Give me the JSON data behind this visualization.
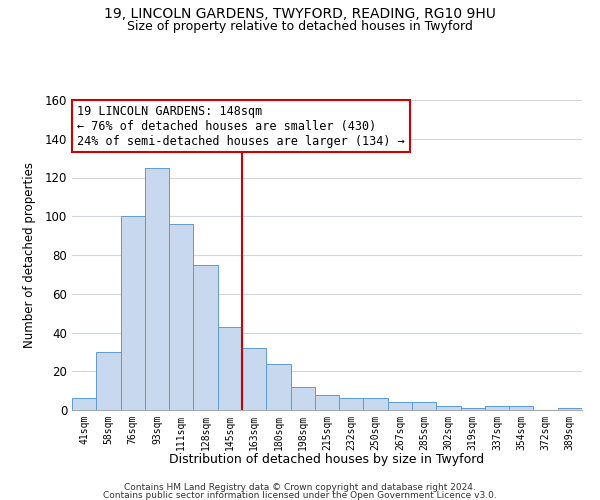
{
  "title1": "19, LINCOLN GARDENS, TWYFORD, READING, RG10 9HU",
  "title2": "Size of property relative to detached houses in Twyford",
  "xlabel": "Distribution of detached houses by size in Twyford",
  "ylabel": "Number of detached properties",
  "bar_labels": [
    "41sqm",
    "58sqm",
    "76sqm",
    "93sqm",
    "111sqm",
    "128sqm",
    "145sqm",
    "163sqm",
    "180sqm",
    "198sqm",
    "215sqm",
    "232sqm",
    "250sqm",
    "267sqm",
    "285sqm",
    "302sqm",
    "319sqm",
    "337sqm",
    "354sqm",
    "372sqm",
    "389sqm"
  ],
  "bar_values": [
    6,
    30,
    100,
    125,
    96,
    75,
    43,
    32,
    24,
    12,
    8,
    6,
    6,
    4,
    4,
    2,
    1,
    2,
    2,
    0,
    1
  ],
  "bar_color": "#c8d9ef",
  "bar_edge_color": "#5b9bd5",
  "vline_x_index": 6,
  "vline_color": "#cc0000",
  "annotation_text": "19 LINCOLN GARDENS: 148sqm\n← 76% of detached houses are smaller (430)\n24% of semi-detached houses are larger (134) →",
  "annotation_box_edge": "#cc0000",
  "ylim": [
    0,
    160
  ],
  "yticks": [
    0,
    20,
    40,
    60,
    80,
    100,
    120,
    140,
    160
  ],
  "footer1": "Contains HM Land Registry data © Crown copyright and database right 2024.",
  "footer2": "Contains public sector information licensed under the Open Government Licence v3.0.",
  "bg_color": "#ffffff",
  "grid_color": "#d0d8e4"
}
